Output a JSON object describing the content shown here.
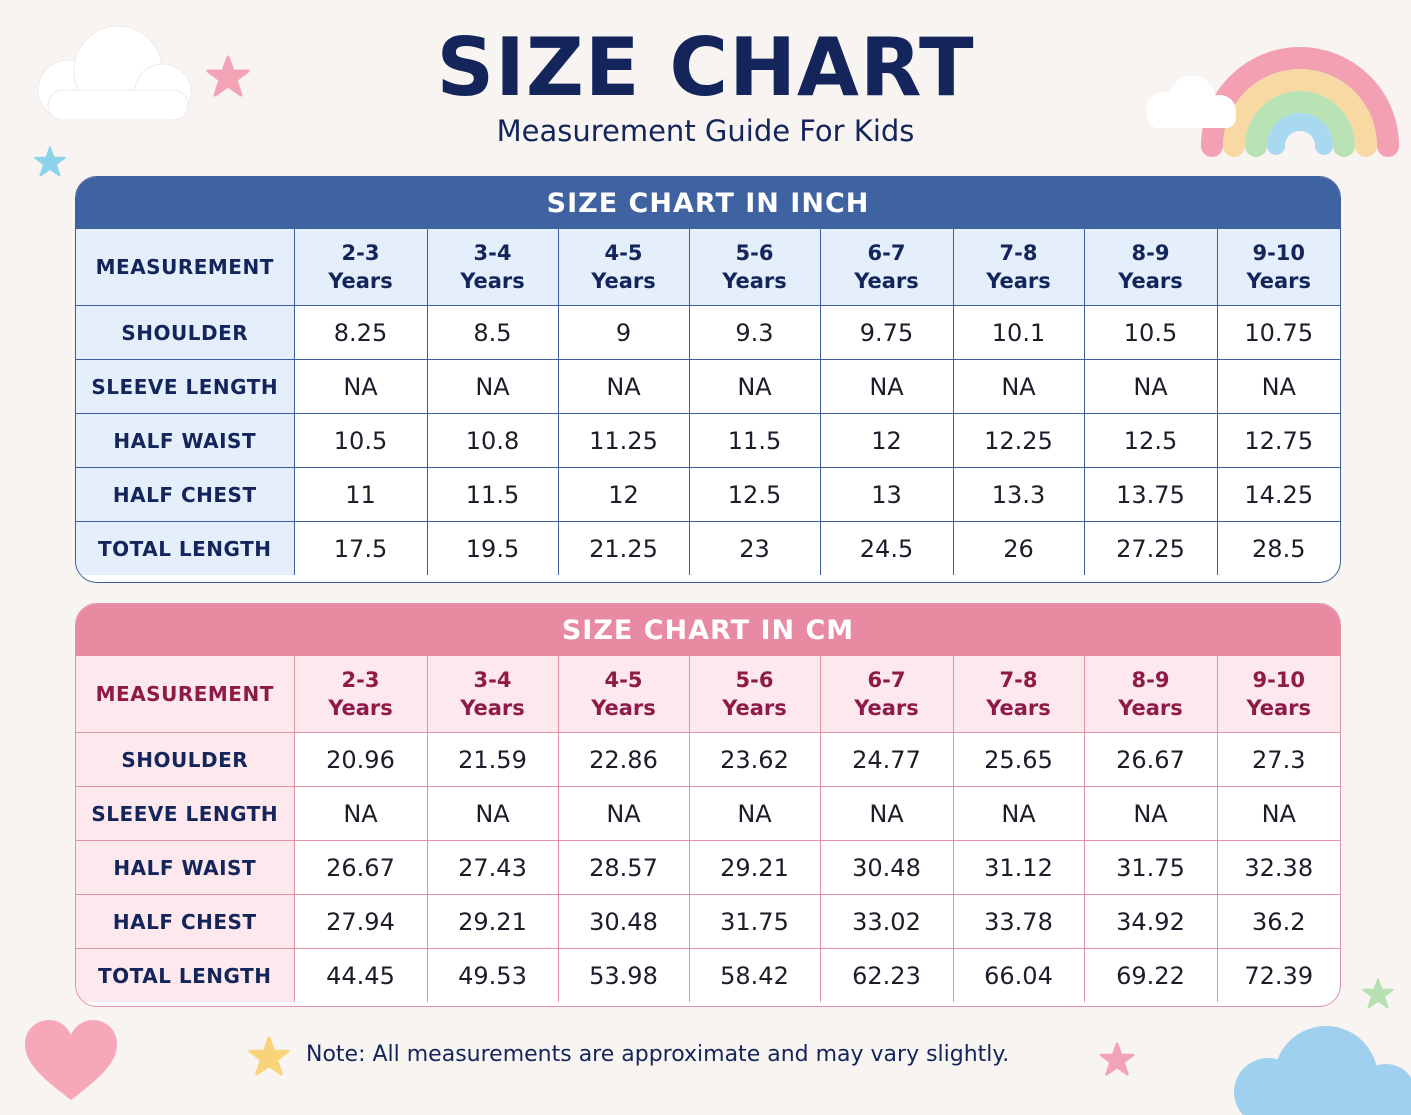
{
  "header": {
    "title": "SIZE CHART",
    "subtitle": "Measurement Guide For Kids"
  },
  "tables": {
    "inch": {
      "heading": "SIZE CHART IN INCH",
      "measurement_header": "MEASUREMENT",
      "sizes": [
        {
          "range": "2-3",
          "unit": "Years"
        },
        {
          "range": "3-4",
          "unit": "Years"
        },
        {
          "range": "4-5",
          "unit": "Years"
        },
        {
          "range": "5-6",
          "unit": "Years"
        },
        {
          "range": "6-7",
          "unit": "Years"
        },
        {
          "range": "7-8",
          "unit": "Years"
        },
        {
          "range": "8-9",
          "unit": "Years"
        },
        {
          "range": "9-10",
          "unit": "Years"
        }
      ],
      "rows": [
        {
          "label": "SHOULDER",
          "values": [
            "8.25",
            "8.5",
            "9",
            "9.3",
            "9.75",
            "10.1",
            "10.5",
            "10.75"
          ]
        },
        {
          "label": "SLEEVE LENGTH",
          "values": [
            "NA",
            "NA",
            "NA",
            "NA",
            "NA",
            "NA",
            "NA",
            "NA"
          ]
        },
        {
          "label": "HALF WAIST",
          "values": [
            "10.5",
            "10.8",
            "11.25",
            "11.5",
            "12",
            "12.25",
            "12.5",
            "12.75"
          ]
        },
        {
          "label": "HALF CHEST",
          "values": [
            "11",
            "11.5",
            "12",
            "12.5",
            "13",
            "13.3",
            "13.75",
            "14.25"
          ]
        },
        {
          "label": "TOTAL LENGTH",
          "values": [
            "17.5",
            "19.5",
            "21.25",
            "23",
            "24.5",
            "26",
            "27.25",
            "28.5"
          ]
        }
      ]
    },
    "cm": {
      "heading": "SIZE CHART IN CM",
      "measurement_header": "MEASUREMENT",
      "sizes": [
        {
          "range": "2-3",
          "unit": "Years"
        },
        {
          "range": "3-4",
          "unit": "Years"
        },
        {
          "range": "4-5",
          "unit": "Years"
        },
        {
          "range": "5-6",
          "unit": "Years"
        },
        {
          "range": "6-7",
          "unit": "Years"
        },
        {
          "range": "7-8",
          "unit": "Years"
        },
        {
          "range": "8-9",
          "unit": "Years"
        },
        {
          "range": "9-10",
          "unit": "Years"
        }
      ],
      "rows": [
        {
          "label": "SHOULDER",
          "values": [
            "20.96",
            "21.59",
            "22.86",
            "23.62",
            "24.77",
            "25.65",
            "26.67",
            "27.3"
          ]
        },
        {
          "label": "SLEEVE LENGTH",
          "values": [
            "NA",
            "NA",
            "NA",
            "NA",
            "NA",
            "NA",
            "NA",
            "NA"
          ]
        },
        {
          "label": "HALF WAIST",
          "values": [
            "26.67",
            "27.43",
            "28.57",
            "29.21",
            "30.48",
            "31.12",
            "31.75",
            "32.38"
          ]
        },
        {
          "label": "HALF CHEST",
          "values": [
            "27.94",
            "29.21",
            "30.48",
            "31.75",
            "33.02",
            "33.78",
            "34.92",
            "36.2"
          ]
        },
        {
          "label": "TOTAL LENGTH",
          "values": [
            "44.45",
            "49.53",
            "53.98",
            "58.42",
            "62.23",
            "66.04",
            "69.22",
            "72.39"
          ]
        }
      ]
    }
  },
  "footer": {
    "note": "Note: All measurements are approximate and may vary slightly."
  },
  "decorations": [
    "cloud-icon",
    "star-icon",
    "rainbow-icon",
    "heart-icon"
  ],
  "colors": {
    "navy_text": "#13255a",
    "inch_accent": "#3f62a1",
    "cm_accent": "#e78aa2",
    "cm_size_text": "#8e1a48",
    "background": "#f8f4f1"
  }
}
